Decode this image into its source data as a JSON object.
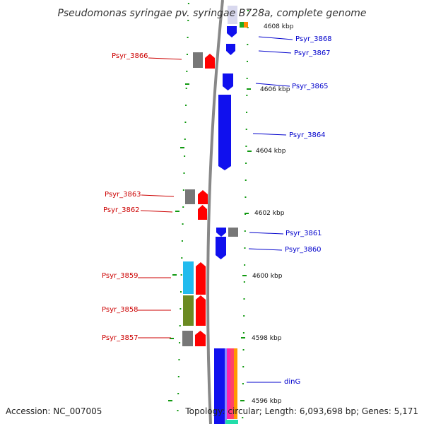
{
  "title": "Pseudomonas syringae pv. syringae B728a, complete genome",
  "accession": "Accession: NC_007005",
  "topology": "Topology: circular; Length: 6,093,698 bp; Genes: 5,171",
  "colors": {
    "forward_label": "#cc0000",
    "reverse_label": "#0000cc",
    "forward_gene": "#ff0000",
    "reverse_gene": "#1010ee",
    "tick": "#119911",
    "backbone": "#888888"
  },
  "kbp_marks": [
    {
      "label": "4608 kbp"
    },
    {
      "label": "4606 kbp"
    },
    {
      "label": "4604 kbp"
    },
    {
      "label": "4602 kbp"
    },
    {
      "label": "4600 kbp"
    },
    {
      "label": "4598 kbp"
    },
    {
      "label": "4596 kbp"
    }
  ],
  "forward_genes": [
    {
      "name": "Psyr_3866"
    },
    {
      "name": "Psyr_3863"
    },
    {
      "name": "Psyr_3862"
    },
    {
      "name": "Psyr_3859"
    },
    {
      "name": "Psyr_3858"
    },
    {
      "name": "Psyr_3857"
    }
  ],
  "reverse_genes": [
    {
      "name": "Psyr_3868"
    },
    {
      "name": "Psyr_3867"
    },
    {
      "name": "Psyr_3865"
    },
    {
      "name": "Psyr_3864"
    },
    {
      "name": "Psyr_3861"
    },
    {
      "name": "Psyr_3860"
    },
    {
      "name": "dinG"
    }
  ]
}
